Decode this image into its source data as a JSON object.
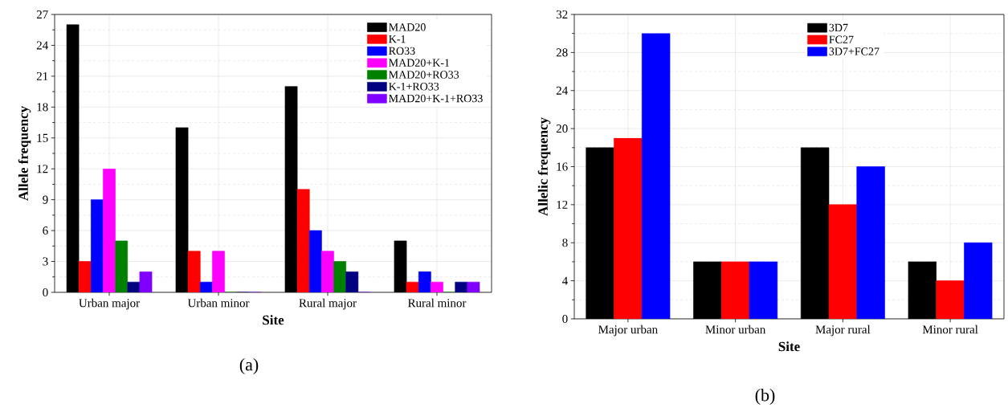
{
  "chart_data": [
    {
      "type": "bar",
      "xlabel": "Site",
      "ylabel": "Allele frequency",
      "categories": [
        "Urban major",
        "Urban minor",
        "Rural major",
        "Rural minor"
      ],
      "ylim": [
        0,
        27
      ],
      "yticks": [
        0,
        3,
        6,
        9,
        12,
        15,
        18,
        21,
        24,
        27
      ],
      "grid": true,
      "legend": "top right",
      "annotations": [
        "(a)"
      ],
      "series": [
        {
          "name": "MAD20",
          "color": "#000000",
          "values": [
            26,
            16,
            20,
            5
          ]
        },
        {
          "name": "K-1",
          "color": "#ff0000",
          "values": [
            3,
            4,
            10,
            1
          ]
        },
        {
          "name": "RO33",
          "color": "#0000ff",
          "values": [
            9,
            1,
            6,
            2
          ]
        },
        {
          "name": "MAD20+K-1",
          "color": "#ff00ff",
          "values": [
            12,
            4,
            4,
            1
          ]
        },
        {
          "name": "MAD20+RO33",
          "color": "#008000",
          "values": [
            5,
            0,
            3,
            0
          ]
        },
        {
          "name": "K-1+RO33",
          "color": "#000080",
          "values": [
            1,
            0,
            2,
            1
          ]
        },
        {
          "name": "MAD20+K-1+RO33",
          "color": "#8000ff",
          "values": [
            2,
            0,
            0,
            1
          ]
        }
      ]
    },
    {
      "type": "bar",
      "xlabel": "Site",
      "ylabel": "Allelic frequency",
      "categories": [
        "Major urban",
        "Minor urban",
        "Major rural",
        "Minor rural"
      ],
      "ylim": [
        0,
        32
      ],
      "yticks": [
        0,
        4,
        8,
        12,
        16,
        20,
        24,
        28,
        32
      ],
      "grid": true,
      "legend": "top right",
      "annotations": [
        "(b)"
      ],
      "series": [
        {
          "name": "3D7",
          "color": "#000000",
          "values": [
            18,
            6,
            18,
            6
          ]
        },
        {
          "name": "FC27",
          "color": "#ff0000",
          "values": [
            19,
            6,
            12,
            4
          ]
        },
        {
          "name": "3D7+FC27",
          "color": "#0000ff",
          "values": [
            30,
            6,
            16,
            8
          ]
        }
      ]
    }
  ]
}
